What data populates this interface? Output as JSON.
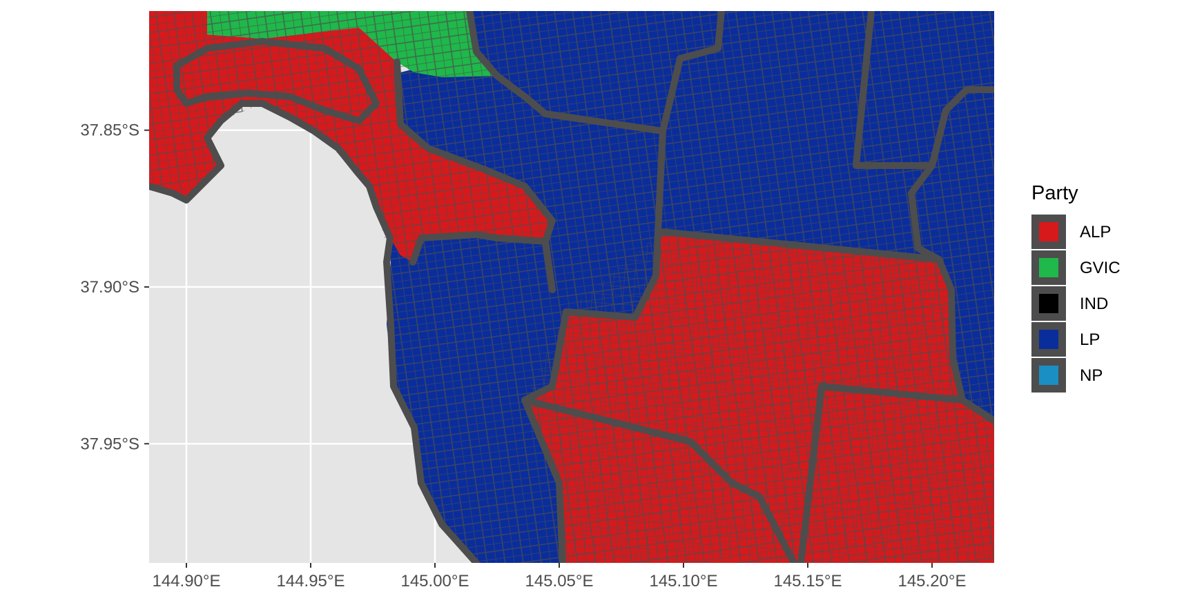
{
  "map": {
    "background_color": "#e5e5e5",
    "grid_color": "#ffffff",
    "boundary_color": "#4d4d4d",
    "x_ticks": [
      "144.90°E",
      "144.95°E",
      "145.00°E",
      "145.05°E",
      "145.10°E",
      "145.15°E",
      "145.20°E"
    ],
    "y_ticks": [
      "37.85°S",
      "37.90°S",
      "37.95°S"
    ],
    "x_tick_values": [
      144.9,
      144.95,
      145.0,
      145.05,
      145.1,
      145.15,
      145.2
    ],
    "y_tick_values": [
      -37.85,
      -37.9,
      -37.95
    ],
    "lon_range": [
      144.885,
      145.225
    ],
    "lat_range": [
      -37.988,
      -37.812
    ]
  },
  "legend": {
    "title": "Party",
    "items": [
      {
        "label": "ALP",
        "color": "#d7191c"
      },
      {
        "label": "GVIC",
        "color": "#1fb84a"
      },
      {
        "label": "IND",
        "color": "#000000"
      },
      {
        "label": "LP",
        "color": "#0a2d9c"
      },
      {
        "label": "NP",
        "color": "#1a8fc4"
      }
    ]
  }
}
